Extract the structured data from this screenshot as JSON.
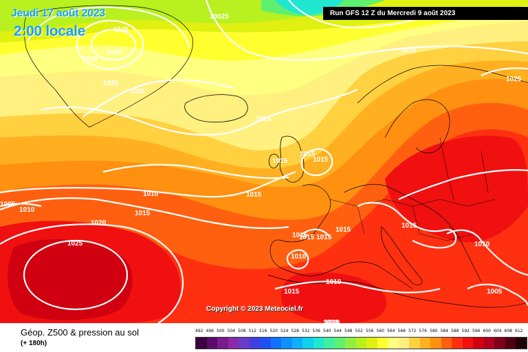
{
  "header": {
    "valid_date": "Jeudi 17 août 2023",
    "valid_time": "2:00 locale",
    "run_info": "Run GFS 12 Z du Mercredi 9 août 2023"
  },
  "copyright": "Copyright © 2023 Meteociel.fr",
  "legend": {
    "title": "Géop. Z500 & pression au sol",
    "subtitle": "(+ 180h)",
    "scale_values": [
      "492",
      "496",
      "500",
      "504",
      "508",
      "512",
      "516",
      "520",
      "524",
      "528",
      "532",
      "536",
      "540",
      "544",
      "548",
      "552",
      "556",
      "560",
      "564",
      "568",
      "572",
      "576",
      "580",
      "584",
      "588",
      "592",
      "596",
      "600",
      "604",
      "608",
      "612"
    ],
    "scale_colors": [
      "#3a0040",
      "#5a0a6a",
      "#7a1a8c",
      "#8a2aaa",
      "#6a3ac8",
      "#4040e0",
      "#2050f0",
      "#1070ff",
      "#1090ff",
      "#10b0ff",
      "#10d0f0",
      "#20e8d0",
      "#40f0a0",
      "#60f070",
      "#90f040",
      "#b8f020",
      "#e0f010",
      "#ffff30",
      "#ffff80",
      "#fff080",
      "#ffd040",
      "#ffb020",
      "#ff9010",
      "#ff6010",
      "#ff3010",
      "#f01010",
      "#d00010",
      "#b00020",
      "#800018",
      "#500010",
      "#200008"
    ]
  },
  "isobars": {
    "labels": [
      "1045",
      "1040",
      "1030",
      "1025",
      "1025",
      "10025",
      "1020",
      "1025",
      "1020",
      "1015",
      "1015",
      "1015",
      "1010",
      "1005",
      "1010",
      "1015",
      "1015",
      "1015",
      "1020",
      "1025",
      "1015",
      "1015",
      "1015",
      "1010",
      "1010",
      "1015",
      "1010",
      "1015",
      "1010",
      "1005",
      "1010"
    ]
  },
  "colors": {
    "high_core": "#c80000",
    "isobar": "#ffffff",
    "coastline": "#000000",
    "accent_text": "#1aa0ff"
  }
}
